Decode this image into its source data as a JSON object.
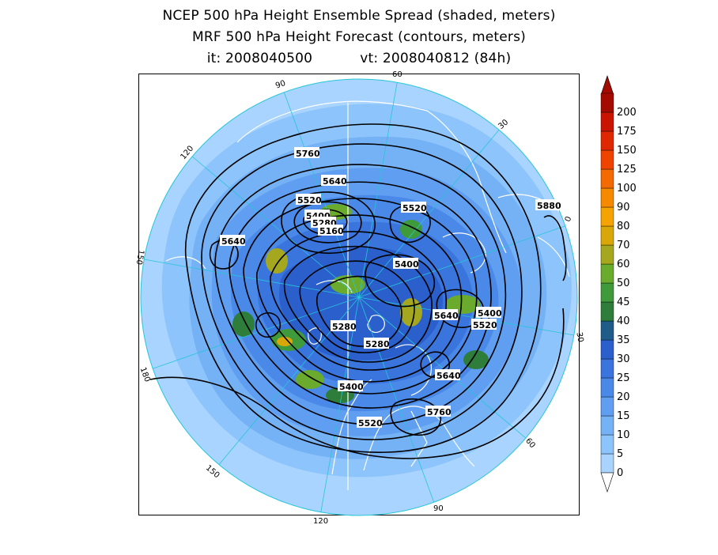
{
  "title": {
    "line1": "NCEP 500 hPa Height Ensemble Spread (shaded, meters)",
    "line2": "MRF 500 hPa Height Forecast (contours, meters)",
    "init_label": "it: 2008040500",
    "valid_label": "vt: 2008040812 (84h)"
  },
  "map": {
    "projection": "north polar stereographic",
    "longitude_labels": [
      "60",
      "30",
      "0",
      "30",
      "60",
      "90",
      "120",
      "150",
      "180",
      "150",
      "120",
      "90"
    ],
    "contour_labels": [
      "5760",
      "5640",
      "5520",
      "5400",
      "5280",
      "5160",
      "5520",
      "5640",
      "5400",
      "5400",
      "5640",
      "5520",
      "5280",
      "5280",
      "5400",
      "5640",
      "5760",
      "5520",
      "5880"
    ]
  },
  "colorbar": {
    "levels": [
      "0",
      "5",
      "10",
      "15",
      "20",
      "25",
      "30",
      "35",
      "40",
      "45",
      "50",
      "60",
      "70",
      "80",
      "90",
      "100",
      "125",
      "150",
      "175",
      "200"
    ],
    "colors": [
      "#a8d4ff",
      "#8cc4fb",
      "#75b1f5",
      "#5f9ef0",
      "#4a89e8",
      "#3a74dd",
      "#2b60cc",
      "#1f5c8a",
      "#2e7d3a",
      "#3f9a3c",
      "#6aab2e",
      "#a5a81f",
      "#d9a70a",
      "#f5a300",
      "#f58a00",
      "#f26a00",
      "#ee4400",
      "#e02800",
      "#c81400",
      "#a30a00"
    ],
    "accent_under": "#ffffff"
  }
}
